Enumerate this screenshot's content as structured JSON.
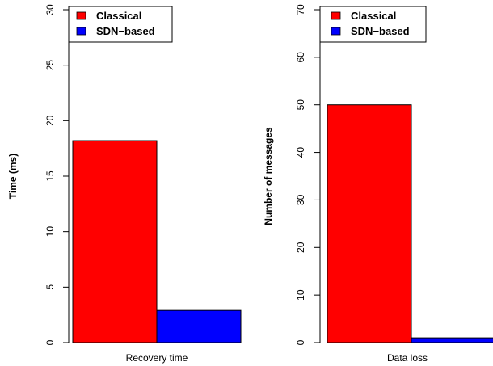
{
  "chart_data": [
    {
      "type": "bar",
      "categories": [
        "Recovery time"
      ],
      "series": [
        {
          "name": "Classical",
          "values": [
            18.2
          ],
          "color": "#ff0000"
        },
        {
          "name": "SDN−based",
          "values": [
            2.9
          ],
          "color": "#0000ff"
        }
      ],
      "ylabel": "Time (ms)",
      "xlabel": "",
      "ylim": [
        0,
        30
      ],
      "yticks": [
        "0",
        "5",
        "10",
        "15",
        "20",
        "25",
        "30"
      ],
      "legend": "top-left",
      "grid": false
    },
    {
      "type": "bar",
      "categories": [
        "Data loss"
      ],
      "series": [
        {
          "name": "Classical",
          "values": [
            50
          ],
          "color": "#ff0000"
        },
        {
          "name": "SDN−based",
          "values": [
            1
          ],
          "color": "#0000ff"
        }
      ],
      "ylabel": "Number of messages",
      "xlabel": "",
      "ylim": [
        0,
        70
      ],
      "yticks": [
        "0",
        "10",
        "20",
        "30",
        "40",
        "50",
        "60",
        "70"
      ],
      "legend": "top-left",
      "grid": false
    }
  ]
}
